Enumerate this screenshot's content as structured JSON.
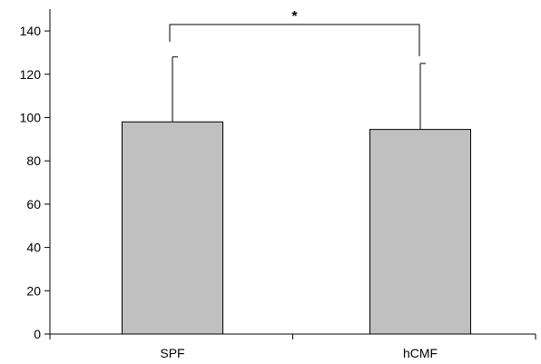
{
  "chart_data": {
    "type": "bar",
    "title": "",
    "xlabel": "",
    "ylabel": "",
    "categories": [
      "SPF",
      "hCMF"
    ],
    "values": [
      98,
      94.5
    ],
    "error_upper": [
      128,
      125
    ],
    "ylim": [
      0,
      150
    ],
    "yticks": [
      "0",
      "20",
      "40",
      "60",
      "80",
      "100",
      "120",
      "140"
    ],
    "ytick_values": [
      0,
      20,
      40,
      60,
      80,
      100,
      120,
      140
    ],
    "grid": false,
    "legend": "none",
    "bar_color": "#c0c0c0",
    "significance": {
      "between": [
        "SPF",
        "hCMF"
      ],
      "label": "*"
    }
  }
}
